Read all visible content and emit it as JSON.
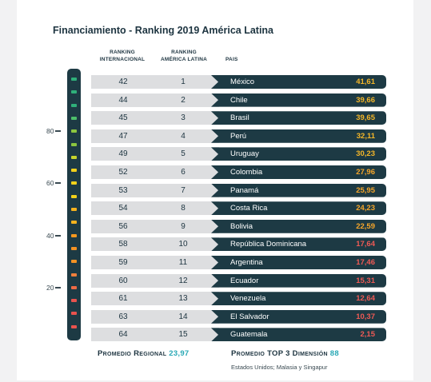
{
  "title": "Financiamiento - Ranking 2019 América Latina",
  "headers": {
    "intl_line1": "RANKING",
    "intl_line2": "INTERNACIONAL",
    "lat_line1": "RANKING",
    "lat_line2": "AMÉRICA LATINA",
    "pais": "PAIS"
  },
  "scale": {
    "ticks": [
      "80",
      "60",
      "40",
      "20"
    ],
    "dot_colors": [
      "#2fb07a",
      "#2fb07a",
      "#2fb07a",
      "#4cbf6a",
      "#8cc63f",
      "#8cc63f",
      "#c6d52c",
      "#f2d11a",
      "#f2d11a",
      "#f2d11a",
      "#f5b21e",
      "#f5b21e",
      "#f5981f",
      "#f39223",
      "#f39223",
      "#f07f3c",
      "#ec6a45",
      "#e8534e",
      "#e8534e",
      "#e8534e"
    ]
  },
  "rows": [
    {
      "intl": "42",
      "lat": "1",
      "pais": "México",
      "score": "41,61",
      "color": "#f6b728"
    },
    {
      "intl": "44",
      "lat": "2",
      "pais": "Chile",
      "score": "39,66",
      "color": "#f6b728"
    },
    {
      "intl": "45",
      "lat": "3",
      "pais": "Brasil",
      "score": "39,65",
      "color": "#f6b728"
    },
    {
      "intl": "47",
      "lat": "4",
      "pais": "Perú",
      "score": "32,11",
      "color": "#f6b728"
    },
    {
      "intl": "49",
      "lat": "5",
      "pais": "Uruguay",
      "score": "30,23",
      "color": "#f6b728"
    },
    {
      "intl": "52",
      "lat": "6",
      "pais": "Colombia",
      "score": "27,96",
      "color": "#f6a62a"
    },
    {
      "intl": "53",
      "lat": "7",
      "pais": "Panamá",
      "score": "25,95",
      "color": "#f6a62a"
    },
    {
      "intl": "54",
      "lat": "8",
      "pais": "Costa Rica",
      "score": "24,23",
      "color": "#f6a62a"
    },
    {
      "intl": "56",
      "lat": "9",
      "pais": "Bolivia",
      "score": "22,59",
      "color": "#f6a62a"
    },
    {
      "intl": "58",
      "lat": "10",
      "pais": "República Dominicana",
      "score": "17,64",
      "color": "#ef5a55"
    },
    {
      "intl": "59",
      "lat": "11",
      "pais": "Argentina",
      "score": "17,46",
      "color": "#ef5a55"
    },
    {
      "intl": "60",
      "lat": "12",
      "pais": "Ecuador",
      "score": "15,31",
      "color": "#ef5a55"
    },
    {
      "intl": "61",
      "lat": "13",
      "pais": "Venezuela",
      "score": "12,64",
      "color": "#ef5a55"
    },
    {
      "intl": "63",
      "lat": "14",
      "pais": "El Salvador",
      "score": "10,37",
      "color": "#ef5a55"
    },
    {
      "intl": "64",
      "lat": "15",
      "pais": "Guatemala",
      "score": "2,15",
      "color": "#ef5a55"
    }
  ],
  "footer": {
    "regional_label": "Promedio Regional",
    "regional_value": "23,97",
    "top3_label": "Promedio TOP 3 Dimensión",
    "top3_value": "88",
    "top3_note": "Estados Unidos; Malasia y Singapur"
  }
}
